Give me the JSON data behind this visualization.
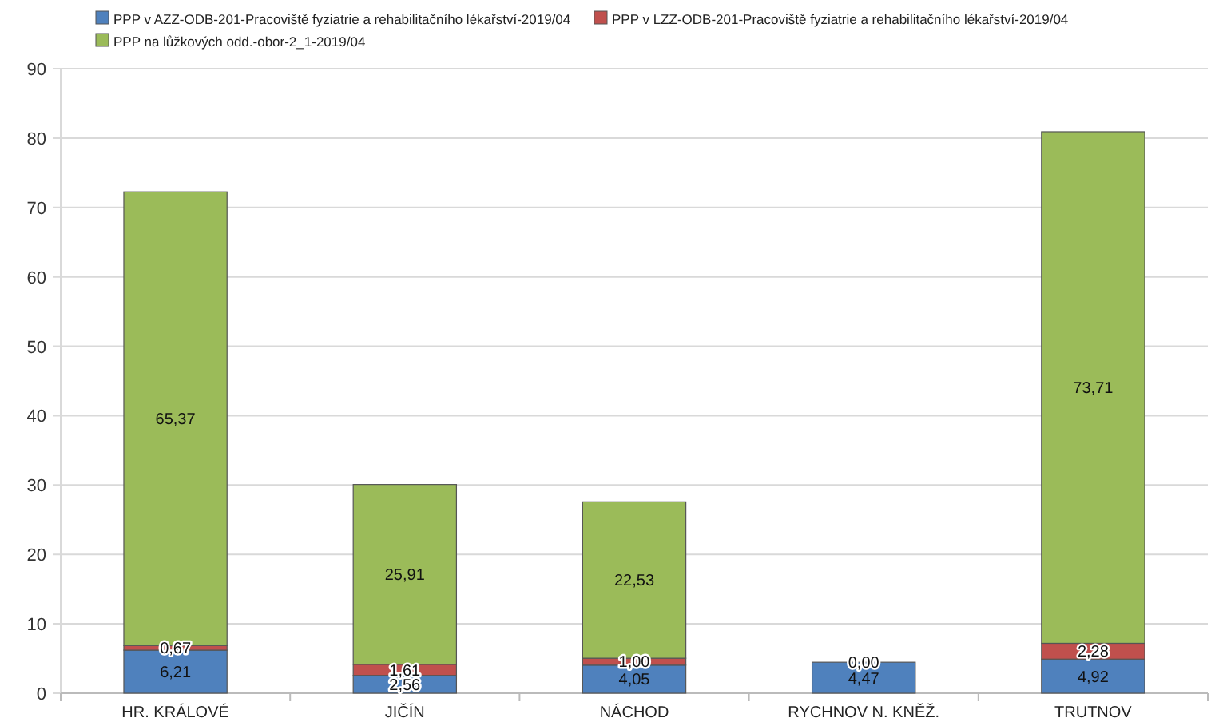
{
  "chart_data": {
    "type": "bar",
    "stacked": true,
    "categories": [
      "HR. KRÁLOVÉ",
      "JIČÍN",
      "NÁCHOD",
      "RYCHNOV N. KNĚŽ.",
      "TRUTNOV"
    ],
    "series": [
      {
        "name": "PPP v AZZ-ODB-201-Pracoviště fyziatrie a rehabilitačního lékařství-2019/04",
        "color": "#4f81bd",
        "values": [
          6.21,
          2.56,
          4.05,
          4.47,
          4.92
        ],
        "value_labels": [
          "6,21",
          "2,56",
          "4,05",
          "4,47",
          "4,92"
        ]
      },
      {
        "name": "PPP v LZZ-ODB-201-Pracoviště fyziatrie a rehabilitačního lékařství-2019/04",
        "color": "#c0504d",
        "values": [
          0.67,
          1.61,
          1.0,
          0,
          2.28
        ],
        "value_labels": [
          "0,67",
          "1,61",
          "1,00",
          "0,00",
          "2,28"
        ]
      },
      {
        "name": "PPP na lůžkových odd.-obor-2_1-2019/04",
        "color": "#9bbb59",
        "values": [
          65.37,
          25.91,
          22.53,
          null,
          73.71
        ],
        "value_labels": [
          "65,37",
          "25,91",
          "22,53",
          null,
          "73,71"
        ]
      }
    ],
    "ylim": [
      0,
      90
    ],
    "yticks": [
      0,
      10,
      20,
      30,
      40,
      50,
      60,
      70,
      80,
      90
    ],
    "grid": "y",
    "legend": "top"
  }
}
